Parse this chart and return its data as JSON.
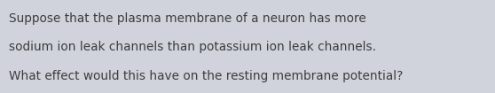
{
  "text_lines": [
    "Suppose that the plasma membrane of a neuron has more",
    "sodium ion leak channels than potassium ion leak channels.",
    "What effect would this have on the resting membrane potential?"
  ],
  "background_color": "#d0d3dc",
  "text_color": "#3d3d3d",
  "font_size": 9.8,
  "font_family": "DejaVu Sans",
  "fig_width": 5.58,
  "fig_height": 1.05,
  "dpi": 100
}
